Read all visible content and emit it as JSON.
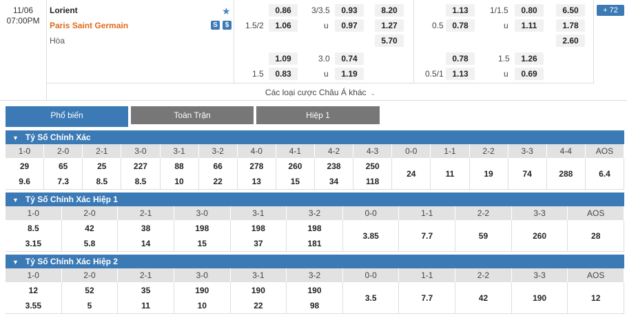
{
  "match": {
    "date": "11/06",
    "time": "07:00PM",
    "home": "Lorient",
    "away": "Paris Saint Germain",
    "draw": "Hòa",
    "icons": [
      "star-icon",
      "stats-icon",
      "money-icon"
    ],
    "icon_s": "S",
    "icon_d": "$",
    "star": "★"
  },
  "market1": {
    "r1_hc": "3/3.5",
    "r1_o1": "0.86",
    "r1_o2": "0.93",
    "r1_o3": "8.20",
    "r2_hc": "1.5/2",
    "r2_u": "u",
    "r2_o1": "1.06",
    "r2_o2": "0.97",
    "r2_o3": "1.27",
    "r3_o3": "5.70",
    "r4_hc": "3.0",
    "r4_o1": "1.09",
    "r4_o2": "0.74",
    "r5_hc": "1.5",
    "r5_u": "u",
    "r5_o1": "0.83",
    "r5_o2": "1.19"
  },
  "market2": {
    "r1_hc": "1/1.5",
    "r1_o1": "1.13",
    "r1_o2": "0.80",
    "r1_o3": "6.50",
    "r2_hc": "0.5",
    "r2_u": "u",
    "r2_o1": "0.78",
    "r2_o2": "1.11",
    "r2_o3": "1.78",
    "r3_o3": "2.60",
    "r4_hc": "1.5",
    "r4_o1": "0.78",
    "r4_o2": "1.26",
    "r5_hc": "0.5/1",
    "r5_u": "u",
    "r5_o1": "1.13",
    "r5_o2": "0.69"
  },
  "more_label": "Các loại cược Châu Á khác",
  "more_chevron": "⌄",
  "badge": "+ 72",
  "tabs": [
    "Phổ biến",
    "Toàn Trận",
    "Hiệp 1"
  ],
  "sections": [
    {
      "title": "Tỷ Số Chính Xác",
      "headers": [
        "1-0",
        "2-0",
        "2-1",
        "3-0",
        "3-1",
        "3-2",
        "4-0",
        "4-1",
        "4-2",
        "4-3",
        "0-0",
        "1-1",
        "2-2",
        "3-3",
        "4-4",
        "AOS"
      ],
      "cells": [
        [
          "29",
          "9.6"
        ],
        [
          "65",
          "7.3"
        ],
        [
          "25",
          "8.5"
        ],
        [
          "227",
          "8.5"
        ],
        [
          "88",
          "10"
        ],
        [
          "66",
          "22"
        ],
        [
          "278",
          "13"
        ],
        [
          "260",
          "15"
        ],
        [
          "238",
          "34"
        ],
        [
          "250",
          "118"
        ],
        [
          "24"
        ],
        [
          "11"
        ],
        [
          "19"
        ],
        [
          "74"
        ],
        [
          "288"
        ],
        [
          "6.4"
        ]
      ]
    },
    {
      "title": "Tỷ Số Chính Xác Hiệp 1",
      "headers": [
        "1-0",
        "2-0",
        "2-1",
        "3-0",
        "3-1",
        "3-2",
        "0-0",
        "1-1",
        "2-2",
        "3-3",
        "AOS"
      ],
      "cells": [
        [
          "8.5",
          "3.15"
        ],
        [
          "42",
          "5.8"
        ],
        [
          "38",
          "14"
        ],
        [
          "198",
          "15"
        ],
        [
          "198",
          "37"
        ],
        [
          "198",
          "181"
        ],
        [
          "3.85"
        ],
        [
          "7.7"
        ],
        [
          "59"
        ],
        [
          "260"
        ],
        [
          "28"
        ]
      ]
    },
    {
      "title": "Tỷ Số Chính Xác Hiệp 2",
      "headers": [
        "1-0",
        "2-0",
        "2-1",
        "3-0",
        "3-1",
        "3-2",
        "0-0",
        "1-1",
        "2-2",
        "3-3",
        "AOS"
      ],
      "cells": [
        [
          "12",
          "3.55"
        ],
        [
          "52",
          "5"
        ],
        [
          "35",
          "11"
        ],
        [
          "190",
          "10"
        ],
        [
          "190",
          "22"
        ],
        [
          "190",
          "98"
        ],
        [
          "3.5"
        ],
        [
          "7.7"
        ],
        [
          "42"
        ],
        [
          "190"
        ],
        [
          "12"
        ]
      ]
    }
  ]
}
